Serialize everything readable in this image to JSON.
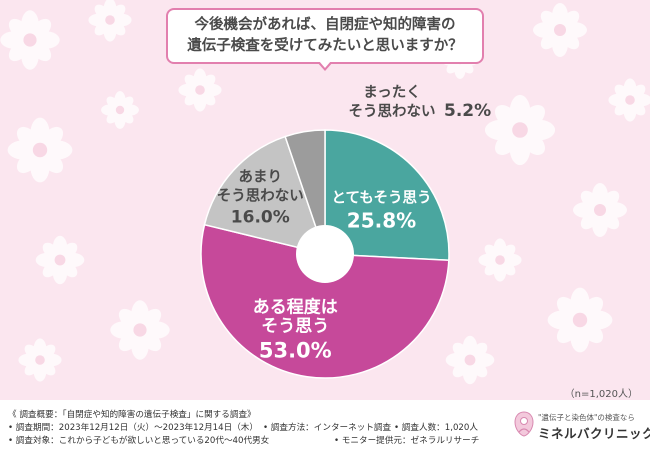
{
  "title": {
    "line1": "今後機会があれば、自閉症や知的障害の",
    "line2": "遺伝子検査を受けてみたいと思いますか？"
  },
  "chart_data": {
    "type": "pie",
    "categories": [
      "とてもそう思う",
      "ある程度はそう思う",
      "あまりそう思わない",
      "まったくそう思わない"
    ],
    "values": [
      25.8,
      53.0,
      16.0,
      5.2
    ],
    "value_labels": [
      "25.8%",
      "53.0%",
      "16.0%",
      "5.2%"
    ],
    "colors": [
      "#4aa69f",
      "#c6499a",
      "#c4c4c4",
      "#9c9c9c"
    ],
    "label_lines": [
      [
        "とてもそう思う"
      ],
      [
        "ある程度は",
        "そう思う"
      ],
      [
        "あまり",
        "そう思わない"
      ],
      [
        "まったく",
        "そう思わない"
      ]
    ],
    "start": "12 o'clock",
    "direction": "clockwise",
    "donut": true
  },
  "sample_size": "（n=1,020人）",
  "footer": {
    "overview": "《 調査概要：「自閉症や知的障害の遺伝子検査」に関する調査》",
    "period": "• 調査期間：2023年12月12日（火）～2023年12月14日（木）",
    "method": "• 調査方法：インターネット調査",
    "count": "• 調査人数：1,020人",
    "target": "• 調査対象：これから子どもが欲しいと思っている20代～40代男女",
    "provider": "• モニター提供元：ゼネラルリサーチ"
  },
  "brand": {
    "tagline": "\"遺伝子と染色体\"の検査なら",
    "name": "ミネルバクリニック"
  }
}
